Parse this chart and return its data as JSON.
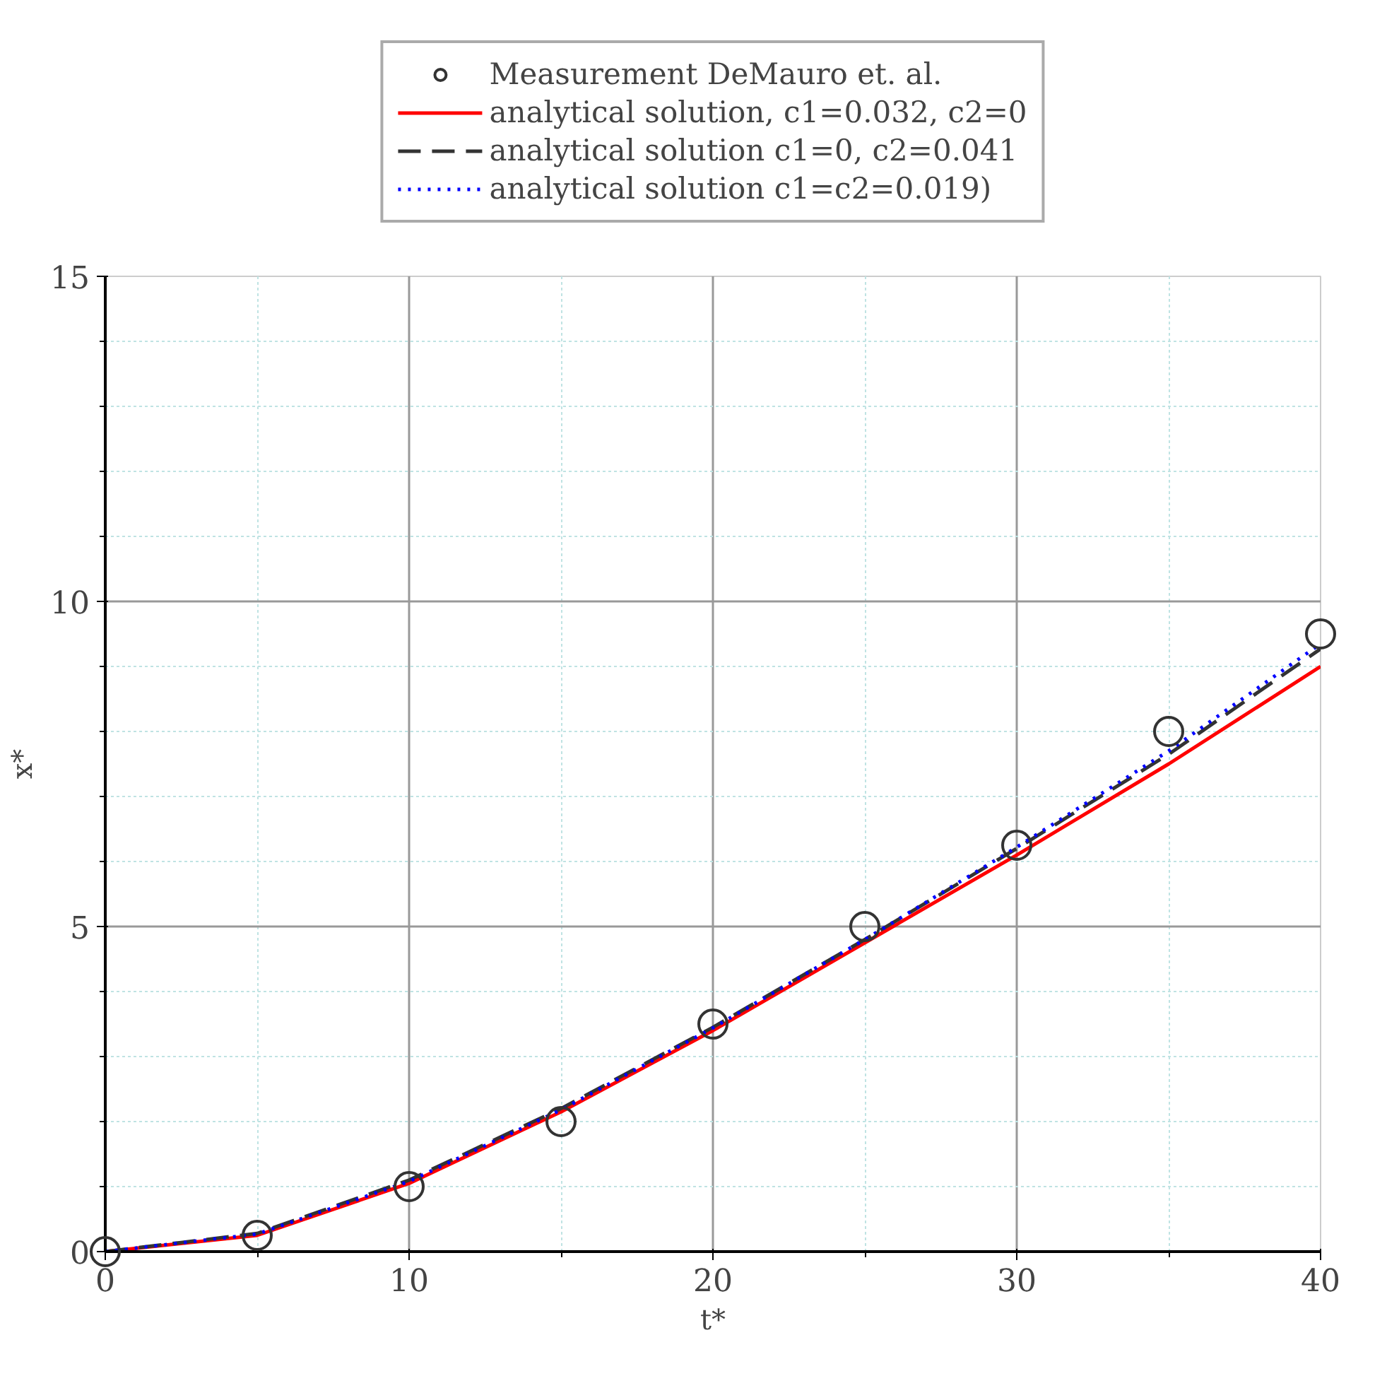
{
  "chart_data": {
    "type": "line",
    "xlabel": "t*",
    "ylabel": "x*",
    "xlim": [
      0,
      40
    ],
    "ylim": [
      0,
      15
    ],
    "xticks": [
      0,
      10,
      20,
      30,
      40
    ],
    "yticks": [
      0,
      5,
      10,
      15
    ],
    "grid": true,
    "legend": "top",
    "x": [
      0,
      5,
      10,
      15,
      20,
      25,
      30,
      35,
      40
    ],
    "series": [
      {
        "name": "Measurement DeMauro et. al.",
        "type": "scatter",
        "marker": "circle",
        "color": "#333333",
        "values": [
          0,
          0.25,
          1.0,
          2.0,
          3.5,
          5.0,
          6.25,
          8.0,
          9.5
        ]
      },
      {
        "name": "analytical solution, c1=0.032, c2=0",
        "type": "line",
        "line_style": "solid",
        "color": "#ff0000",
        "values": [
          0,
          0.25,
          1.05,
          2.15,
          3.4,
          4.75,
          6.1,
          7.5,
          9.0
        ]
      },
      {
        "name": "analytical solution c1=0, c2=0.041",
        "type": "line",
        "line_style": "dashed",
        "color": "#333333",
        "values": [
          0,
          0.28,
          1.1,
          2.2,
          3.45,
          4.8,
          6.2,
          7.65,
          9.27
        ]
      },
      {
        "name": "analytical solution c1=c2=0.019)",
        "type": "line",
        "line_style": "dotted",
        "color": "#0000ff",
        "values": [
          0,
          0.27,
          1.08,
          2.18,
          3.44,
          4.8,
          6.22,
          7.7,
          9.35
        ]
      }
    ]
  }
}
